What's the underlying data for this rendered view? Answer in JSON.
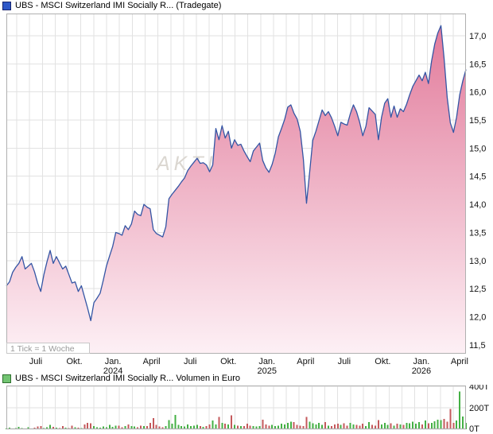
{
  "price_chart": {
    "title": "UBS - MSCI Switzerland IMI Socially R... (Tradegate)",
    "legend_color": "#2e58c8",
    "legend_border": "#16246e",
    "tick_note": "1 Tick = 1 Woche",
    "watermark": "AKTIEN"
  },
  "volume_chart": {
    "title": "UBS - MSCI Switzerland IMI Socially R... Volumen in Euro",
    "legend_color": "#72c472",
    "legend_border": "#2d6f2d"
  },
  "chart_data": [
    {
      "type": "area",
      "title": "UBS - MSCI Switzerland IMI Socially R... (Tradegate)",
      "x_unit_note": "1 Tick = 1 Woche",
      "x_frequency": "weekly",
      "grid": true,
      "legend_position": "top-left",
      "ylim": [
        11.342,
        17.396
      ],
      "y_ticks": [
        {
          "v": 17.0,
          "label": "17,0"
        },
        {
          "v": 16.5,
          "label": "16,5"
        },
        {
          "v": 16.0,
          "label": "16,0"
        },
        {
          "v": 15.5,
          "label": "15,5"
        },
        {
          "v": 15.0,
          "label": "15,0"
        },
        {
          "v": 14.5,
          "label": "14,5"
        },
        {
          "v": 14.0,
          "label": "14,0"
        },
        {
          "v": 13.5,
          "label": "13,5"
        },
        {
          "v": 13.0,
          "label": "13,0"
        },
        {
          "v": 12.5,
          "label": "12,5"
        },
        {
          "v": 12.0,
          "label": "12,0"
        },
        {
          "v": 11.5,
          "label": "11,5"
        }
      ],
      "x_ticks": [
        {
          "label": "Juli",
          "sub": "",
          "pos": 0.064
        },
        {
          "label": "Okt.",
          "sub": "",
          "pos": 0.148
        },
        {
          "label": "Jan.",
          "sub": "2024",
          "pos": 0.232
        },
        {
          "label": "April",
          "sub": "",
          "pos": 0.316
        },
        {
          "label": "Juli",
          "sub": "",
          "pos": 0.4
        },
        {
          "label": "Okt.",
          "sub": "",
          "pos": 0.483
        },
        {
          "label": "Jan.",
          "sub": "2025",
          "pos": 0.567
        },
        {
          "label": "April",
          "sub": "",
          "pos": 0.651
        },
        {
          "label": "Juli",
          "sub": "",
          "pos": 0.735
        },
        {
          "label": "Okt.",
          "sub": "",
          "pos": 0.819
        },
        {
          "label": "Jan.",
          "sub": "2026",
          "pos": 0.903
        },
        {
          "label": "April",
          "sub": "",
          "pos": 0.986
        }
      ],
      "line_color": "#3455a4",
      "fill_top": "#e27b9b",
      "fill_bottom": "#fdf0f5",
      "values": [
        12.55,
        12.62,
        12.79,
        12.88,
        12.95,
        13.07,
        12.85,
        12.9,
        12.95,
        12.8,
        12.6,
        12.45,
        12.75,
        12.98,
        13.18,
        12.95,
        13.07,
        12.96,
        12.85,
        12.9,
        12.75,
        12.6,
        12.62,
        12.45,
        12.55,
        12.35,
        12.15,
        11.93,
        12.25,
        12.33,
        12.42,
        12.65,
        12.9,
        13.08,
        13.25,
        13.5,
        13.48,
        13.45,
        13.62,
        13.55,
        13.65,
        13.88,
        13.82,
        13.8,
        14.0,
        13.95,
        13.92,
        13.55,
        13.48,
        13.45,
        13.42,
        13.6,
        14.1,
        14.18,
        14.25,
        14.32,
        14.4,
        14.47,
        14.6,
        14.68,
        14.75,
        14.82,
        14.73,
        14.74,
        14.7,
        14.58,
        14.7,
        15.35,
        15.15,
        15.4,
        15.18,
        15.3,
        15.0,
        15.15,
        15.05,
        15.07,
        14.95,
        14.85,
        14.76,
        14.95,
        15.02,
        15.09,
        14.78,
        14.65,
        14.57,
        14.71,
        14.91,
        15.2,
        15.35,
        15.51,
        15.73,
        15.77,
        15.62,
        15.52,
        15.3,
        14.8,
        14.02,
        14.57,
        15.14,
        15.3,
        15.49,
        15.68,
        15.58,
        15.65,
        15.54,
        15.39,
        15.22,
        15.46,
        15.43,
        15.41,
        15.61,
        15.77,
        15.65,
        15.46,
        15.22,
        15.39,
        15.72,
        15.66,
        15.6,
        15.15,
        15.55,
        15.8,
        15.88,
        15.55,
        15.75,
        15.55,
        15.7,
        15.65,
        15.78,
        15.95,
        16.1,
        16.2,
        16.3,
        16.2,
        16.35,
        16.15,
        16.55,
        16.85,
        17.05,
        17.18,
        16.6,
        15.9,
        15.45,
        15.28,
        15.55,
        15.95,
        16.2,
        16.4
      ]
    },
    {
      "type": "bar",
      "title": "UBS - MSCI Switzerland IMI Socially R... Volumen in Euro",
      "y_unit": "T",
      "ylim": [
        0,
        407
      ],
      "y_ticks": [
        {
          "v": 400,
          "label": "400T"
        },
        {
          "v": 200,
          "label": "200T"
        },
        {
          "v": 0,
          "label": "0T"
        }
      ],
      "up_color": "#44b044",
      "down_color": "#c4595c",
      "values": [
        8,
        15,
        6,
        10,
        22,
        12,
        9,
        18,
        7,
        14,
        25,
        30,
        12,
        18,
        40,
        22,
        15,
        10,
        28,
        16,
        12,
        35,
        20,
        15,
        10,
        45,
        60,
        55,
        30,
        20,
        15,
        25,
        18,
        40,
        22,
        35,
        35,
        20,
        28,
        45,
        30,
        25,
        20,
        35,
        28,
        28,
        60,
        105,
        40,
        25,
        20,
        30,
        85,
        50,
        135,
        40,
        30,
        25,
        45,
        30,
        35,
        40,
        28,
        22,
        30,
        45,
        80,
        45,
        115,
        60,
        50,
        45,
        130,
        40,
        35,
        30,
        28,
        50,
        35,
        30,
        25,
        30,
        90,
        45,
        35,
        40,
        30,
        35,
        50,
        45,
        60,
        70,
        65,
        40,
        35,
        30,
        115,
        70,
        55,
        45,
        60,
        40,
        65,
        35,
        30,
        45,
        50,
        40,
        55,
        35,
        60,
        45,
        40,
        35,
        50,
        30,
        65,
        40,
        35,
        85,
        45,
        60,
        40,
        55,
        35,
        50,
        45,
        40,
        60,
        55,
        70,
        50,
        65,
        45,
        80,
        55,
        60,
        75,
        90,
        85,
        95,
        70,
        190,
        60,
        80,
        350,
        120,
        60
      ]
    }
  ]
}
